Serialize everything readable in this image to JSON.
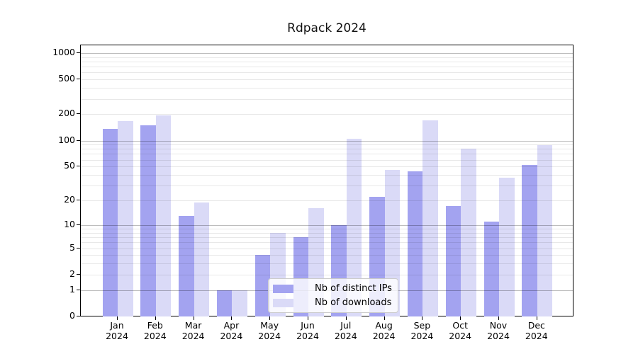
{
  "chart_data": {
    "type": "bar",
    "title": "Rdpack 2024",
    "x_categories": [
      "Jan",
      "Feb",
      "Mar",
      "Apr",
      "May",
      "Jun",
      "Jul",
      "Aug",
      "Sep",
      "Oct",
      "Nov",
      "Dec"
    ],
    "x_year": "2024",
    "y_scale": "log1p",
    "y_ticks": [
      0,
      1,
      2,
      5,
      10,
      20,
      50,
      100,
      200,
      500,
      1000
    ],
    "y_major_gridlines": [
      1,
      10,
      100,
      1000
    ],
    "y_minor_gridlines": [
      2,
      3,
      4,
      5,
      6,
      7,
      8,
      9,
      20,
      30,
      40,
      50,
      60,
      70,
      80,
      90,
      200,
      300,
      400,
      500,
      600,
      700,
      800,
      900
    ],
    "ylim": [
      0,
      1000
    ],
    "grid": true,
    "legend_position": "inside-bottom-center",
    "series": [
      {
        "name": "Nb of distinct IPs",
        "color": "#a3a3f0",
        "values": [
          135,
          150,
          13,
          1,
          4,
          7,
          10,
          22,
          44,
          17,
          11,
          52
        ]
      },
      {
        "name": "Nb of downloads",
        "color": "#dadaf7",
        "values": [
          168,
          193,
          19,
          1,
          8,
          16,
          104,
          46,
          170,
          80,
          37,
          88
        ]
      }
    ],
    "colors": {
      "axis": "#000000",
      "background": "#ffffff",
      "major_grid": "#bdbdbd",
      "minor_grid": "#e8e8e8"
    }
  }
}
